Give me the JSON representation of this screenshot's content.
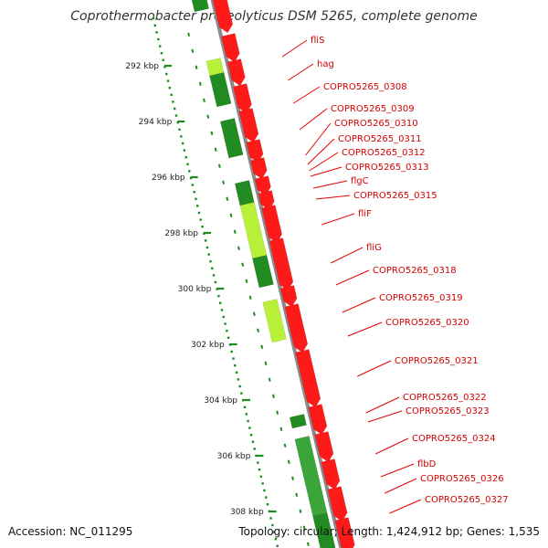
{
  "title": "Coprothermobacter proteolyticus DSM 5265, complete genome",
  "accession_text": "Accession: NC_011295",
  "topology_text": "Topology: circular; Length: 1,424,912 bp; Genes: 1,535",
  "colors": {
    "backbone": "#8a8a8a",
    "forward_cds": "#ff1a1a",
    "reverse_cds_dark": "#228b22",
    "reverse_cds_mid": "#3aa63a",
    "highlight": "#b8f03a",
    "scale_ticks": "#1f8a1f",
    "gene_label": "#d40000",
    "leader_line": "#e60000"
  },
  "kbp_ticks": [
    {
      "label": "292 kbp",
      "kbp": 292
    },
    {
      "label": "294 kbp",
      "kbp": 294
    },
    {
      "label": "296 kbp",
      "kbp": 296
    },
    {
      "label": "298 kbp",
      "kbp": 298
    },
    {
      "label": "300 kbp",
      "kbp": 300
    },
    {
      "label": "302 kbp",
      "kbp": 302
    },
    {
      "label": "304 kbp",
      "kbp": 304
    },
    {
      "label": "306 kbp",
      "kbp": 306
    },
    {
      "label": "308 kbp",
      "kbp": 308
    }
  ],
  "gene_labels": [
    "fliS",
    "hag",
    "COPRO5265_0308",
    "COPRO5265_0309",
    "COPRO5265_0310",
    "COPRO5265_0311",
    "COPRO5265_0312",
    "COPRO5265_0313",
    "flgC",
    "COPRO5265_0315",
    "fliF",
    "fliG",
    "COPRO5265_0318",
    "COPRO5265_0319",
    "COPRO5265_0320",
    "COPRO5265_0321",
    "COPRO5265_0322",
    "COPRO5265_0323",
    "COPRO5265_0324",
    "flbD",
    "COPRO5265_0326",
    "COPRO5265_0327"
  ]
}
